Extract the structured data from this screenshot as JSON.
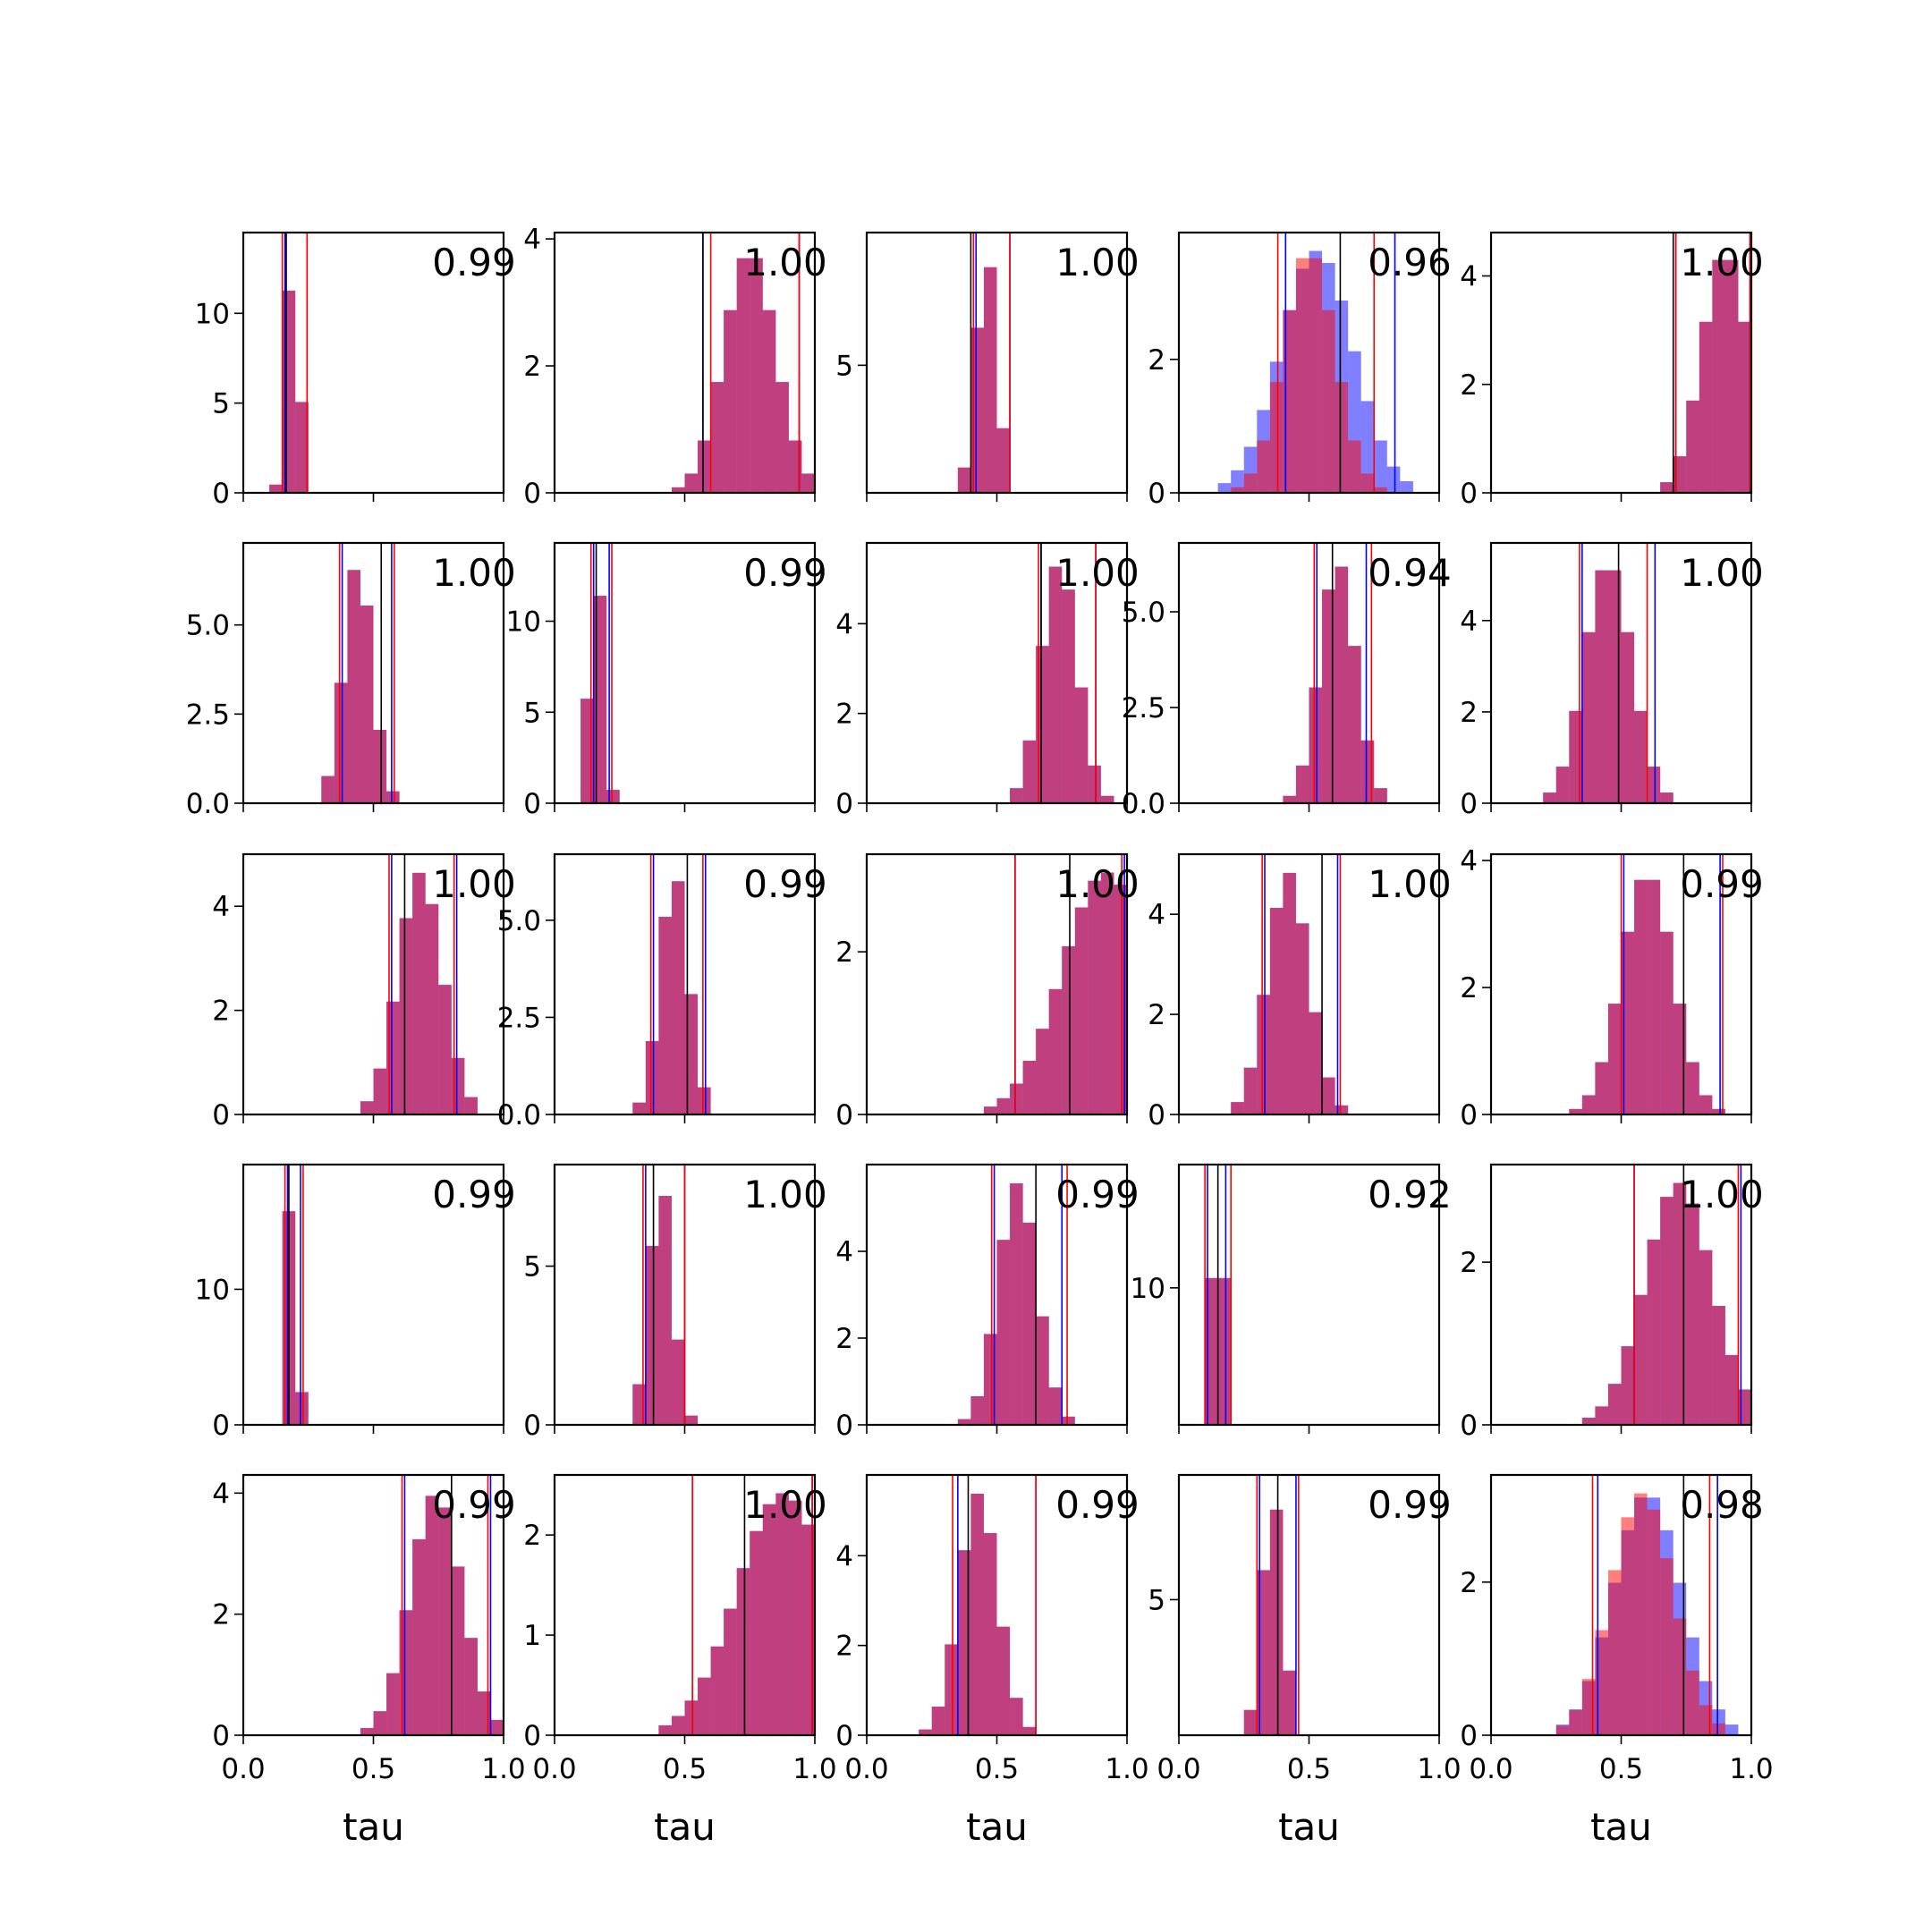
{
  "chart_data": {
    "type": "histogram-grid",
    "rows": 5,
    "cols": 5,
    "xlim": [
      0,
      1
    ],
    "xticks": [
      "0.0",
      "0.5",
      "1.0"
    ],
    "xlabel": "tau",
    "colors": {
      "blue": "#0000ff",
      "red": "#ff0000",
      "overlap": "#c03a78",
      "vline": "#000000"
    },
    "panels": [
      {
        "label": "0.99",
        "ylim": [
          0,
          14.5
        ],
        "yticks": [
          0,
          5,
          10
        ],
        "ytick_labels": [
          "0",
          "5",
          "10"
        ],
        "mean_a": 0.19,
        "sd_a": 0.025,
        "mean_b": 0.19,
        "sd_b": 0.025,
        "black": 0.165,
        "blue_lines": [
          0.16,
          0.245
        ],
        "red_lines": [
          0.15,
          0.245
        ]
      },
      {
        "label": "1.00",
        "ylim": [
          0,
          4.1
        ],
        "yticks": [
          0,
          2,
          4
        ],
        "ytick_labels": [
          "0",
          "2",
          "4"
        ],
        "mean_a": 0.75,
        "sd_a": 0.1,
        "mean_b": 0.75,
        "sd_b": 0.1,
        "black": 0.57,
        "blue_lines": [
          0.57,
          0.94
        ],
        "red_lines": [
          0.6,
          0.94
        ]
      },
      {
        "label": "1.00",
        "ylim": [
          0,
          10.2
        ],
        "yticks": [
          5
        ],
        "ytick_labels": [
          "5"
        ],
        "mean_a": 0.46,
        "sd_a": 0.04,
        "mean_b": 0.46,
        "sd_b": 0.04,
        "black": 0.4,
        "blue_lines": [
          0.42,
          0.55
        ],
        "red_lines": [
          0.41,
          0.55
        ]
      },
      {
        "label": "0.96",
        "ylim": [
          0,
          3.9
        ],
        "yticks": [
          0,
          2
        ],
        "ytick_labels": [
          "0",
          "2"
        ],
        "mean_a": 0.53,
        "sd_a": 0.14,
        "mean_b": 0.5,
        "sd_b": 0.1,
        "black": 0.62,
        "blue_lines": [
          0.41,
          0.83
        ],
        "red_lines": [
          0.38,
          0.75
        ]
      },
      {
        "label": "1.00",
        "ylim": [
          0,
          4.8
        ],
        "yticks": [
          0,
          2,
          4
        ],
        "ytick_labels": [
          "0",
          "2",
          "4"
        ],
        "mean_a": 0.9,
        "sd_a": 0.09,
        "mean_b": 0.9,
        "sd_b": 0.09,
        "black": 0.7,
        "blue_lines": [
          0.71,
          0.995
        ],
        "red_lines": [
          0.71,
          0.995
        ]
      },
      {
        "label": "1.00",
        "ylim": [
          0,
          7.3
        ],
        "yticks": [
          0,
          2.5,
          5
        ],
        "ytick_labels": [
          "0.0",
          "2.5",
          "5.0"
        ],
        "mean_a": 0.44,
        "sd_a": 0.055,
        "mean_b": 0.44,
        "sd_b": 0.055,
        "black": 0.53,
        "blue_lines": [
          0.38,
          0.57
        ],
        "red_lines": [
          0.37,
          0.58
        ]
      },
      {
        "label": "0.99",
        "ylim": [
          0,
          14.3
        ],
        "yticks": [
          0,
          5,
          10
        ],
        "ytick_labels": [
          "0",
          "5",
          "10"
        ],
        "mean_a": 0.16,
        "sd_a": 0.027,
        "mean_b": 0.16,
        "sd_b": 0.027,
        "black": 0.16,
        "blue_lines": [
          0.15,
          0.21
        ],
        "red_lines": [
          0.14,
          0.22
        ]
      },
      {
        "label": "1.00",
        "ylim": [
          0,
          5.8
        ],
        "yticks": [
          0,
          2,
          4
        ],
        "ytick_labels": [
          "0",
          "2",
          "4"
        ],
        "mean_a": 0.74,
        "sd_a": 0.07,
        "mean_b": 0.74,
        "sd_b": 0.07,
        "black": 0.67,
        "blue_lines": [
          0.67,
          0.88
        ],
        "red_lines": [
          0.66,
          0.88
        ]
      },
      {
        "label": "0.94",
        "ylim": [
          0,
          6.8
        ],
        "yticks": [
          0,
          2.5,
          5
        ],
        "ytick_labels": [
          "0.0",
          "2.5",
          "5.0"
        ],
        "mean_a": 0.61,
        "sd_a": 0.07,
        "mean_b": 0.61,
        "sd_b": 0.07,
        "black": 0.59,
        "blue_lines": [
          0.53,
          0.72
        ],
        "red_lines": [
          0.52,
          0.74
        ]
      },
      {
        "label": "1.00",
        "ylim": [
          0,
          5.7
        ],
        "yticks": [
          0,
          2,
          4
        ],
        "ytick_labels": [
          "0",
          "2",
          "4"
        ],
        "mean_a": 0.45,
        "sd_a": 0.09,
        "mean_b": 0.45,
        "sd_b": 0.09,
        "black": 0.49,
        "blue_lines": [
          0.35,
          0.63
        ],
        "red_lines": [
          0.34,
          0.6
        ]
      },
      {
        "label": "1.00",
        "ylim": [
          0,
          5.0
        ],
        "yticks": [
          0,
          2,
          4
        ],
        "ytick_labels": [
          "0",
          "2",
          "4"
        ],
        "mean_a": 0.68,
        "sd_a": 0.085,
        "mean_b": 0.68,
        "sd_b": 0.085,
        "black": 0.62,
        "blue_lines": [
          0.57,
          0.82
        ],
        "red_lines": [
          0.56,
          0.81
        ]
      },
      {
        "label": "0.99",
        "ylim": [
          0,
          6.7
        ],
        "yticks": [
          0,
          2.5,
          5
        ],
        "ytick_labels": [
          "0.0",
          "2.5",
          "5.0"
        ],
        "mean_a": 0.46,
        "sd_a": 0.055,
        "mean_b": 0.46,
        "sd_b": 0.055,
        "black": 0.51,
        "blue_lines": [
          0.38,
          0.58
        ],
        "red_lines": [
          0.37,
          0.57
        ]
      },
      {
        "label": "1.00",
        "ylim": [
          0,
          3.2
        ],
        "yticks": [
          0,
          2
        ],
        "ytick_labels": [
          "0",
          "2"
        ],
        "mean_a": 0.92,
        "sd_a": 0.17,
        "mean_b": 0.92,
        "sd_b": 0.17,
        "black": 0.78,
        "blue_lines": [
          0.57,
          0.99
        ],
        "red_lines": [
          0.57,
          0.98
        ]
      },
      {
        "label": "1.00",
        "ylim": [
          0,
          5.2
        ],
        "yticks": [
          0,
          2,
          4
        ],
        "ytick_labels": [
          "0",
          "2",
          "4"
        ],
        "mean_a": 0.42,
        "sd_a": 0.08,
        "mean_b": 0.42,
        "sd_b": 0.08,
        "black": 0.55,
        "blue_lines": [
          0.33,
          0.61
        ],
        "red_lines": [
          0.32,
          0.62
        ]
      },
      {
        "label": "0.99",
        "ylim": [
          0,
          4.1
        ],
        "yticks": [
          0,
          2,
          4
        ],
        "ytick_labels": [
          "0",
          "2",
          "4"
        ],
        "mean_a": 0.6,
        "sd_a": 0.1,
        "mean_b": 0.6,
        "sd_b": 0.1,
        "black": 0.74,
        "blue_lines": [
          0.51,
          0.88
        ],
        "red_lines": [
          0.5,
          0.89
        ]
      },
      {
        "label": "0.99",
        "ylim": [
          0,
          19.2
        ],
        "yticks": [
          0,
          10
        ],
        "ytick_labels": [
          "0",
          "10"
        ],
        "mean_a": 0.185,
        "sd_a": 0.02,
        "mean_b": 0.185,
        "sd_b": 0.02,
        "black": 0.175,
        "blue_lines": [
          0.17,
          0.22
        ],
        "red_lines": [
          0.16,
          0.23
        ]
      },
      {
        "label": "1.00",
        "ylim": [
          0,
          8.2
        ],
        "yticks": [
          0,
          5
        ],
        "ytick_labels": [
          "0",
          "5"
        ],
        "mean_a": 0.41,
        "sd_a": 0.045,
        "mean_b": 0.41,
        "sd_b": 0.045,
        "black": 0.38,
        "blue_lines": [
          0.35,
          0.5
        ],
        "red_lines": [
          0.34,
          0.5
        ]
      },
      {
        "label": "0.99",
        "ylim": [
          0,
          6.0
        ],
        "yticks": [
          0,
          2,
          4
        ],
        "ytick_labels": [
          "0",
          "2",
          "4"
        ],
        "mean_a": 0.58,
        "sd_a": 0.075,
        "mean_b": 0.58,
        "sd_b": 0.075,
        "black": 0.65,
        "blue_lines": [
          0.49,
          0.75
        ],
        "red_lines": [
          0.48,
          0.77
        ]
      },
      {
        "label": "0.92",
        "ylim": [
          0,
          19.0
        ],
        "yticks": [
          10
        ],
        "ytick_labels": [
          "10"
        ],
        "mean_a": 0.15,
        "sd_a": 0.025,
        "mean_b": 0.15,
        "sd_b": 0.025,
        "black": 0.15,
        "blue_lines": [
          0.11,
          0.18
        ],
        "red_lines": [
          0.1,
          0.2
        ]
      },
      {
        "label": "1.00",
        "ylim": [
          0,
          3.2
        ],
        "yticks": [
          0,
          2
        ],
        "ytick_labels": [
          "0",
          "2"
        ],
        "mean_a": 0.72,
        "sd_a": 0.13,
        "mean_b": 0.72,
        "sd_b": 0.13,
        "black": 0.74,
        "blue_lines": [
          0.55,
          0.96
        ],
        "red_lines": [
          0.55,
          0.95
        ]
      },
      {
        "label": "0.99",
        "ylim": [
          0,
          4.3
        ],
        "yticks": [
          0,
          2,
          4
        ],
        "ytick_labels": [
          "0",
          "2",
          "4"
        ],
        "mean_a": 0.74,
        "sd_a": 0.1,
        "mean_b": 0.74,
        "sd_b": 0.1,
        "black": 0.8,
        "blue_lines": [
          0.62,
          0.95
        ],
        "red_lines": [
          0.61,
          0.94
        ]
      },
      {
        "label": "1.00",
        "ylim": [
          0,
          2.6
        ],
        "yticks": [
          0,
          1,
          2
        ],
        "ytick_labels": [
          "0",
          "1",
          "2"
        ],
        "mean_a": 0.88,
        "sd_a": 0.18,
        "mean_b": 0.88,
        "sd_b": 0.18,
        "black": 0.73,
        "blue_lines": [
          0.53,
          0.99
        ],
        "red_lines": [
          0.53,
          0.99
        ]
      },
      {
        "label": "0.99",
        "ylim": [
          0,
          5.8
        ],
        "yticks": [
          0,
          2,
          4
        ],
        "ytick_labels": [
          "0",
          "2",
          "4"
        ],
        "mean_a": 0.43,
        "sd_a": 0.075,
        "mean_b": 0.43,
        "sd_b": 0.075,
        "black": 0.39,
        "blue_lines": [
          0.35,
          0.65
        ],
        "red_lines": [
          0.33,
          0.65
        ]
      },
      {
        "label": "0.99",
        "ylim": [
          0,
          9.6
        ],
        "yticks": [
          5
        ],
        "ytick_labels": [
          "5"
        ],
        "mean_a": 0.36,
        "sd_a": 0.04,
        "mean_b": 0.36,
        "sd_b": 0.04,
        "black": 0.38,
        "blue_lines": [
          0.31,
          0.45
        ],
        "red_lines": [
          0.3,
          0.46
        ]
      },
      {
        "label": "0.98",
        "ylim": [
          0,
          3.4
        ],
        "yticks": [
          0,
          2
        ],
        "ytick_labels": [
          "0",
          "2"
        ],
        "mean_a": 0.6,
        "sd_a": 0.13,
        "mean_b": 0.58,
        "sd_b": 0.12,
        "black": 0.74,
        "blue_lines": [
          0.41,
          0.87
        ],
        "red_lines": [
          0.39,
          0.84
        ]
      }
    ]
  }
}
